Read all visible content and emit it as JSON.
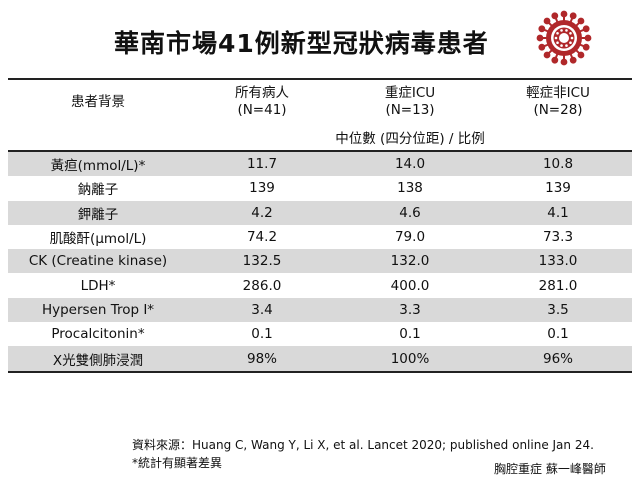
{
  "title": "華南市場41例新型冠狀病毒患者",
  "header": {
    "row_label": "患者背景",
    "groups": [
      {
        "name": "所有病人",
        "n": "(N=41)"
      },
      {
        "name": "重症ICU",
        "n": "(N=13)"
      },
      {
        "name": "輕症非ICU",
        "n": "(N=28)"
      }
    ],
    "subheader": "中位數 (四分位距) / 比例"
  },
  "rows": [
    {
      "label": "黃疸(mmol/L)*",
      "values": [
        "11.7",
        "14.0",
        "10.8"
      ]
    },
    {
      "label": "鈉離子",
      "values": [
        "139",
        "138",
        "139"
      ]
    },
    {
      "label": "鉀離子",
      "values": [
        "4.2",
        "4.6",
        "4.1"
      ]
    },
    {
      "label": "肌酸酐(μmol/L)",
      "values": [
        "74.2",
        "79.0",
        "73.3"
      ]
    },
    {
      "label": "CK (Creatine kinase)",
      "values": [
        "132.5",
        "132.0",
        "133.0"
      ]
    },
    {
      "label": "LDH*",
      "values": [
        "286.0",
        "400.0",
        "281.0"
      ]
    },
    {
      "label": "Hypersen Trop I*",
      "values": [
        "3.4",
        "3.3",
        "3.5"
      ]
    },
    {
      "label": "Procalcitonin*",
      "values": [
        "0.1",
        "0.1",
        "0.1"
      ]
    },
    {
      "label": "X光雙側肺浸潤",
      "values": [
        "98%",
        "100%",
        "96%"
      ]
    }
  ],
  "footer": {
    "source": "資料來源：Huang C, Wang Y, Li X, et al. Lancet 2020; published online Jan 24.",
    "note": "*統計有顯著差異",
    "credit": "胸腔重症  蘇一峰醫師"
  },
  "colors": {
    "shade": "#d9d9d9",
    "virus": "#b0282a"
  }
}
